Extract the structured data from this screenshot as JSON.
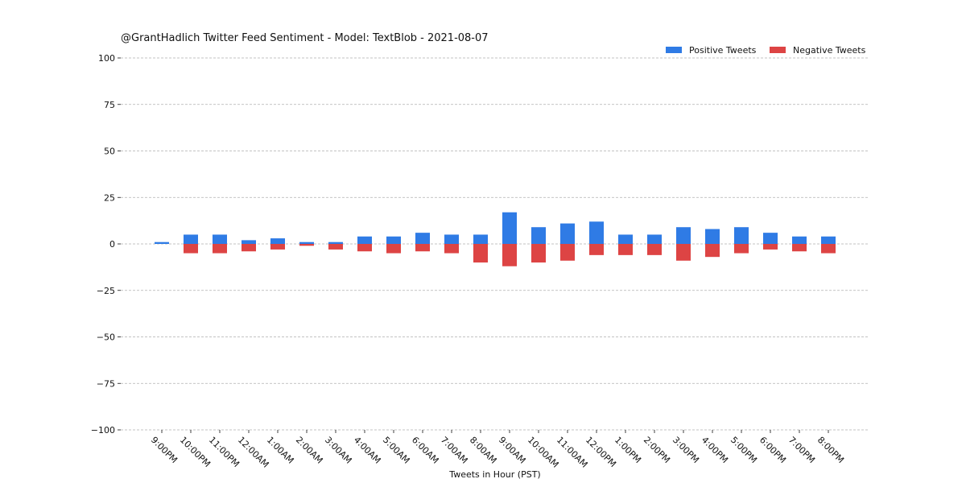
{
  "chart_data": {
    "type": "bar",
    "title": "@GrantHadlich Twitter Feed Sentiment - Model: TextBlob - 2021-08-07",
    "xlabel": "Tweets in Hour (PST)",
    "ylabel": "",
    "ylim": [
      -100,
      100
    ],
    "yticks": [
      100,
      75,
      50,
      25,
      0,
      -25,
      -50,
      -75,
      -100
    ],
    "ytick_labels": [
      "100",
      "75",
      "50",
      "25",
      "0",
      "−25",
      "−50",
      "−75",
      "−100"
    ],
    "grid": true,
    "legend_position": "top-right",
    "stacked": true,
    "categories": [
      "9:00PM",
      "10:00PM",
      "11:00PM",
      "12:00AM",
      "1:00AM",
      "2:00AM",
      "3:00AM",
      "4:00AM",
      "5:00AM",
      "6:00AM",
      "7:00AM",
      "8:00AM",
      "9:00AM",
      "10:00AM",
      "11:00AM",
      "12:00PM",
      "1:00PM",
      "2:00PM",
      "3:00PM",
      "4:00PM",
      "5:00PM",
      "6:00PM",
      "7:00PM",
      "8:00PM"
    ],
    "series": [
      {
        "name": "Positive Tweets",
        "color": "#2f7be5",
        "values": [
          1,
          5,
          5,
          2,
          3,
          1,
          1,
          4,
          4,
          6,
          5,
          5,
          17,
          9,
          11,
          12,
          5,
          5,
          9,
          8,
          9,
          6,
          4,
          4
        ]
      },
      {
        "name": "Negative Tweets",
        "color": "#dd4444",
        "values": [
          0,
          -5,
          -5,
          -4,
          -3,
          -1,
          -3,
          -4,
          -5,
          -4,
          -5,
          -10,
          -12,
          -10,
          -9,
          -6,
          -6,
          -6,
          -9,
          -7,
          -5,
          -3,
          -4,
          -5
        ]
      }
    ]
  }
}
